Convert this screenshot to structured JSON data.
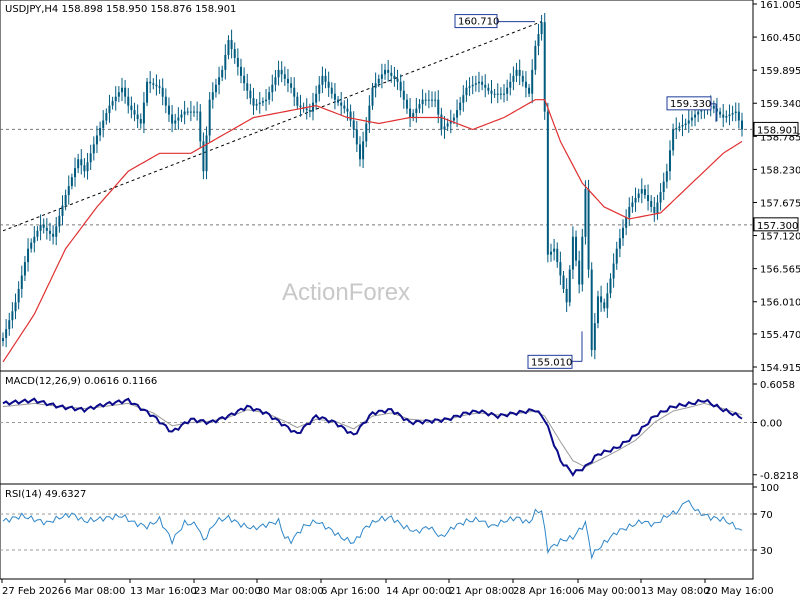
{
  "watermark": "ActionForex",
  "price_panel": {
    "header": "USDJPY,H4  158.898 158.950 158.876 158.901",
    "current_price_label": "158.901",
    "annotations": {
      "high": "160.710",
      "low": "155.010",
      "recent_high": "159.330",
      "support": "157.300"
    }
  },
  "macd_panel": {
    "header": "MACD(12,26,9) 0.0616 0.1166"
  },
  "rsi_panel": {
    "header": "RSI(14) 49.6327"
  },
  "colors": {
    "candle": "#005b7f",
    "ma": "#e03030",
    "macd": "#0a0a8a",
    "signal": "#9a9a9a",
    "rsi": "#2e86c8",
    "annotation_box": "#1f3b9a"
  },
  "chart_data": [
    {
      "type": "candlestick",
      "title": "USDJPY,H4",
      "y_ticks": [
        "161.005",
        "160.450",
        "159.895",
        "159.340",
        "158.785",
        "158.230",
        "157.675",
        "157.120",
        "156.565",
        "156.010",
        "155.470",
        "154.915"
      ],
      "ylim": [
        154.915,
        161.005
      ],
      "x_ticks": [
        "27 Feb 2026",
        "6 Mar 08:00",
        "13 Mar 16:00",
        "23 Mar 00:00",
        "30 Mar 08:00",
        "6 Apr 16:00",
        "14 Apr 00:00",
        "21 Apr 08:00",
        "28 Apr 16:00",
        "6 May 00:00",
        "13 May 08:00",
        "20 May 16:00"
      ],
      "price_anchors": [
        [
          0,
          155.4
        ],
        [
          4,
          156.0
        ],
        [
          8,
          156.9
        ],
        [
          12,
          157.3
        ],
        [
          16,
          157.1
        ],
        [
          20,
          157.8
        ],
        [
          24,
          158.4
        ],
        [
          26,
          158.2
        ],
        [
          30,
          158.8
        ],
        [
          34,
          159.3
        ],
        [
          38,
          159.6
        ],
        [
          40,
          159.3
        ],
        [
          44,
          159.0
        ],
        [
          46,
          159.7
        ],
        [
          50,
          159.6
        ],
        [
          54,
          159.0
        ],
        [
          58,
          159.2
        ],
        [
          62,
          159.2
        ],
        [
          64,
          158.2
        ],
        [
          66,
          159.4
        ],
        [
          70,
          159.9
        ],
        [
          72,
          160.4
        ],
        [
          76,
          159.8
        ],
        [
          80,
          159.3
        ],
        [
          84,
          159.4
        ],
        [
          88,
          159.9
        ],
        [
          92,
          159.6
        ],
        [
          94,
          159.3
        ],
        [
          98,
          159.2
        ],
        [
          102,
          159.8
        ],
        [
          106,
          159.4
        ],
        [
          110,
          159.2
        ],
        [
          112,
          158.9
        ],
        [
          114,
          158.4
        ],
        [
          118,
          159.6
        ],
        [
          122,
          159.9
        ],
        [
          126,
          159.7
        ],
        [
          130,
          159.1
        ],
        [
          134,
          159.4
        ],
        [
          138,
          159.4
        ],
        [
          140,
          158.9
        ],
        [
          144,
          159.1
        ],
        [
          148,
          159.6
        ],
        [
          152,
          159.7
        ],
        [
          156,
          159.5
        ],
        [
          160,
          159.5
        ],
        [
          164,
          159.9
        ],
        [
          168,
          159.5
        ],
        [
          170,
          160.3
        ],
        [
          172,
          160.7
        ],
        [
          173,
          159.2
        ],
        [
          174,
          156.8
        ],
        [
          176,
          156.9
        ],
        [
          180,
          156.0
        ],
        [
          182,
          157.1
        ],
        [
          184,
          156.3
        ],
        [
          186,
          157.9
        ],
        [
          188,
          155.2
        ],
        [
          190,
          156.1
        ],
        [
          192,
          155.9
        ],
        [
          194,
          156.4
        ],
        [
          196,
          156.9
        ],
        [
          200,
          157.6
        ],
        [
          204,
          157.9
        ],
        [
          208,
          157.5
        ],
        [
          212,
          158.2
        ],
        [
          214,
          158.9
        ],
        [
          218,
          159.0
        ],
        [
          222,
          159.2
        ],
        [
          226,
          159.3
        ],
        [
          230,
          159.1
        ],
        [
          234,
          159.2
        ],
        [
          236,
          158.9
        ]
      ],
      "moving_average_anchors": [
        [
          0,
          155.0
        ],
        [
          10,
          155.8
        ],
        [
          20,
          156.9
        ],
        [
          30,
          157.6
        ],
        [
          40,
          158.2
        ],
        [
          50,
          158.5
        ],
        [
          60,
          158.5
        ],
        [
          70,
          158.8
        ],
        [
          80,
          159.1
        ],
        [
          90,
          159.2
        ],
        [
          100,
          159.3
        ],
        [
          110,
          159.1
        ],
        [
          120,
          159.0
        ],
        [
          130,
          159.1
        ],
        [
          140,
          159.1
        ],
        [
          150,
          158.9
        ],
        [
          160,
          159.1
        ],
        [
          170,
          159.4
        ],
        [
          173,
          159.4
        ],
        [
          178,
          158.7
        ],
        [
          185,
          158.0
        ],
        [
          192,
          157.6
        ],
        [
          200,
          157.4
        ],
        [
          210,
          157.5
        ],
        [
          220,
          158.0
        ],
        [
          230,
          158.5
        ],
        [
          236,
          158.7
        ]
      ],
      "trendline": {
        "from": [
          0,
          157.2
        ],
        "to": [
          172,
          160.71
        ]
      },
      "horizontal_lines": [
        157.3,
        158.901
      ]
    },
    {
      "type": "line",
      "title": "MACD(12,26,9)",
      "y_ticks": [
        "0.6058",
        "0.00",
        "-0.8218"
      ],
      "ylim": [
        -0.92,
        0.7
      ],
      "zero_line": 0.0,
      "series": [
        {
          "name": "MACD",
          "anchors": [
            [
              0,
              0.3
            ],
            [
              10,
              0.35
            ],
            [
              18,
              0.25
            ],
            [
              26,
              0.2
            ],
            [
              32,
              0.28
            ],
            [
              40,
              0.35
            ],
            [
              48,
              0.1
            ],
            [
              54,
              -0.15
            ],
            [
              60,
              0.05
            ],
            [
              66,
              0.0
            ],
            [
              72,
              0.1
            ],
            [
              78,
              0.25
            ],
            [
              84,
              0.15
            ],
            [
              90,
              -0.05
            ],
            [
              94,
              -0.18
            ],
            [
              100,
              0.1
            ],
            [
              106,
              0.0
            ],
            [
              112,
              -0.2
            ],
            [
              118,
              0.15
            ],
            [
              124,
              0.2
            ],
            [
              130,
              0.0
            ],
            [
              136,
              0.02
            ],
            [
              142,
              0.05
            ],
            [
              148,
              0.15
            ],
            [
              152,
              0.18
            ],
            [
              158,
              0.1
            ],
            [
              164,
              0.15
            ],
            [
              170,
              0.2
            ],
            [
              173,
              0.05
            ],
            [
              178,
              -0.6
            ],
            [
              182,
              -0.8
            ],
            [
              186,
              -0.7
            ],
            [
              190,
              -0.5
            ],
            [
              196,
              -0.4
            ],
            [
              202,
              -0.2
            ],
            [
              208,
              0.1
            ],
            [
              214,
              0.25
            ],
            [
              220,
              0.3
            ],
            [
              224,
              0.35
            ],
            [
              230,
              0.2
            ],
            [
              236,
              0.08
            ]
          ]
        },
        {
          "name": "Signal",
          "anchors": [
            [
              0,
              0.25
            ],
            [
              10,
              0.3
            ],
            [
              18,
              0.25
            ],
            [
              26,
              0.22
            ],
            [
              32,
              0.25
            ],
            [
              40,
              0.3
            ],
            [
              48,
              0.15
            ],
            [
              54,
              -0.05
            ],
            [
              60,
              0.0
            ],
            [
              66,
              0.02
            ],
            [
              72,
              0.08
            ],
            [
              78,
              0.2
            ],
            [
              84,
              0.15
            ],
            [
              90,
              0.02
            ],
            [
              94,
              -0.08
            ],
            [
              100,
              0.05
            ],
            [
              106,
              0.02
            ],
            [
              112,
              -0.1
            ],
            [
              118,
              0.1
            ],
            [
              124,
              0.15
            ],
            [
              130,
              0.05
            ],
            [
              136,
              0.03
            ],
            [
              142,
              0.05
            ],
            [
              148,
              0.12
            ],
            [
              152,
              0.15
            ],
            [
              158,
              0.12
            ],
            [
              164,
              0.14
            ],
            [
              170,
              0.18
            ],
            [
              173,
              0.1
            ],
            [
              178,
              -0.3
            ],
            [
              182,
              -0.6
            ],
            [
              186,
              -0.7
            ],
            [
              190,
              -0.6
            ],
            [
              196,
              -0.45
            ],
            [
              202,
              -0.28
            ],
            [
              208,
              0.0
            ],
            [
              214,
              0.18
            ],
            [
              220,
              0.25
            ],
            [
              224,
              0.3
            ],
            [
              230,
              0.22
            ],
            [
              236,
              0.12
            ]
          ]
        }
      ]
    },
    {
      "type": "line",
      "title": "RSI(14)",
      "y_ticks": [
        "100",
        "70",
        "30"
      ],
      "ylim": [
        0,
        100
      ],
      "reference_lines": [
        70,
        30
      ],
      "series": [
        {
          "name": "RSI",
          "anchors": [
            [
              0,
              62
            ],
            [
              6,
              68
            ],
            [
              10,
              64
            ],
            [
              14,
              60
            ],
            [
              18,
              66
            ],
            [
              22,
              70
            ],
            [
              26,
              62
            ],
            [
              30,
              64
            ],
            [
              34,
              66
            ],
            [
              38,
              68
            ],
            [
              42,
              60
            ],
            [
              46,
              56
            ],
            [
              50,
              64
            ],
            [
              54,
              40
            ],
            [
              58,
              60
            ],
            [
              62,
              58
            ],
            [
              64,
              40
            ],
            [
              68,
              62
            ],
            [
              72,
              66
            ],
            [
              76,
              58
            ],
            [
              80,
              54
            ],
            [
              84,
              58
            ],
            [
              88,
              62
            ],
            [
              90,
              44
            ],
            [
              92,
              40
            ],
            [
              96,
              56
            ],
            [
              100,
              62
            ],
            [
              104,
              54
            ],
            [
              108,
              44
            ],
            [
              112,
              38
            ],
            [
              116,
              56
            ],
            [
              120,
              64
            ],
            [
              124,
              66
            ],
            [
              128,
              56
            ],
            [
              132,
              50
            ],
            [
              136,
              56
            ],
            [
              140,
              44
            ],
            [
              144,
              56
            ],
            [
              148,
              62
            ],
            [
              152,
              64
            ],
            [
              156,
              56
            ],
            [
              160,
              62
            ],
            [
              164,
              66
            ],
            [
              168,
              60
            ],
            [
              170,
              72
            ],
            [
              172,
              74
            ],
            [
              173,
              52
            ],
            [
              174,
              30
            ],
            [
              178,
              40
            ],
            [
              182,
              44
            ],
            [
              186,
              60
            ],
            [
              188,
              24
            ],
            [
              192,
              38
            ],
            [
              196,
              50
            ],
            [
              200,
              56
            ],
            [
              204,
              62
            ],
            [
              208,
              58
            ],
            [
              212,
              68
            ],
            [
              216,
              74
            ],
            [
              218,
              86
            ],
            [
              222,
              72
            ],
            [
              226,
              66
            ],
            [
              230,
              64
            ],
            [
              234,
              56
            ],
            [
              236,
              50
            ]
          ]
        }
      ]
    }
  ]
}
